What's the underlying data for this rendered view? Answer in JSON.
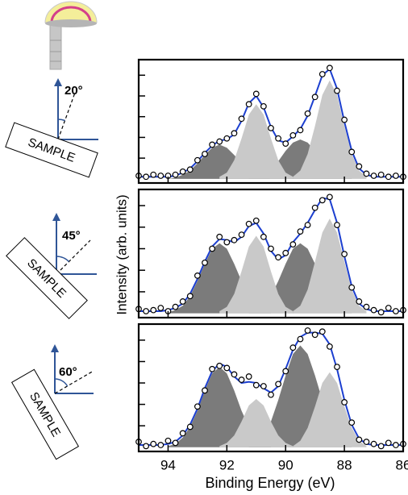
{
  "chart_data": [
    {
      "type": "line",
      "angle": "20°",
      "sample_label": "SAMPLE",
      "xlim": [
        95,
        86
      ],
      "ylim": [
        -0.04,
        1.15
      ],
      "xticks": [
        94,
        92,
        90,
        88,
        86
      ],
      "yticks": [
        0.2,
        0.4,
        0.6,
        0.8,
        1.0
      ],
      "xticklabels": false,
      "x": [
        95,
        94.75,
        94.5,
        94.25,
        94,
        93.75,
        93.5,
        93.25,
        93,
        92.75,
        92.5,
        92.25,
        92,
        91.75,
        91.5,
        91.25,
        91,
        90.75,
        90.5,
        90.25,
        90,
        89.75,
        89.5,
        89.25,
        89,
        88.75,
        88.5,
        88.25,
        88,
        87.75,
        87.5,
        87.25,
        87,
        86.75,
        86.5,
        86.25,
        86
      ],
      "series": [
        {
          "mark": "area",
          "color": "#7b7b7b",
          "values": [
            null,
            null,
            null,
            null,
            0,
            0.01,
            0.04,
            0.08,
            0.15,
            0.23,
            0.3,
            0.33,
            0.3,
            0.23,
            0.15,
            0.08,
            0.04,
            0.01,
            0,
            null,
            null,
            null,
            null,
            null,
            null,
            null,
            null,
            null,
            null,
            null,
            null,
            null,
            null,
            null,
            null,
            null,
            null
          ]
        },
        {
          "mark": "area",
          "color": "#7b7b7b",
          "values": [
            null,
            null,
            null,
            null,
            null,
            null,
            null,
            null,
            null,
            null,
            null,
            null,
            null,
            null,
            null,
            0.01,
            0.02,
            0.04,
            0.09,
            0.17,
            0.27,
            0.35,
            0.38,
            0.35,
            0.27,
            0.17,
            0.09,
            0.04,
            0.02,
            0.01,
            null,
            null,
            null,
            null,
            null,
            null,
            null
          ]
        },
        {
          "mark": "area",
          "color": "#c9c9c9",
          "values": [
            null,
            null,
            null,
            null,
            null,
            null,
            null,
            null,
            null,
            null,
            null,
            0.02,
            0.06,
            0.18,
            0.39,
            0.62,
            0.72,
            0.62,
            0.39,
            0.18,
            0.06,
            0.02,
            null,
            null,
            null,
            null,
            null,
            null,
            null,
            null,
            null,
            null,
            null,
            null,
            null,
            null,
            null
          ]
        },
        {
          "mark": "area",
          "color": "#c9c9c9",
          "values": [
            null,
            null,
            null,
            null,
            null,
            null,
            null,
            null,
            null,
            null,
            null,
            null,
            null,
            null,
            null,
            null,
            null,
            null,
            null,
            null,
            null,
            0.02,
            0.08,
            0.24,
            0.51,
            0.81,
            0.95,
            0.81,
            0.51,
            0.24,
            0.08,
            0.02,
            null,
            null,
            null,
            null,
            null
          ]
        },
        {
          "mark": "line",
          "color": "#1c3fd0",
          "values": [
            0.02,
            0.02,
            0.02,
            0.02,
            0.02,
            0.03,
            0.06,
            0.1,
            0.17,
            0.25,
            0.32,
            0.37,
            0.38,
            0.43,
            0.56,
            0.73,
            0.8,
            0.69,
            0.5,
            0.37,
            0.35,
            0.41,
            0.48,
            0.61,
            0.8,
            1.0,
            1.06,
            0.87,
            0.55,
            0.27,
            0.1,
            0.04,
            0.02,
            0.02,
            0.02,
            0.02,
            0.02
          ]
        },
        {
          "mark": "marker",
          "color": "#000000",
          "values": [
            0.03,
            0.02,
            0.04,
            0.03,
            0.03,
            0.04,
            0.07,
            0.09,
            0.18,
            0.24,
            0.33,
            0.36,
            0.39,
            0.44,
            0.58,
            0.72,
            0.82,
            0.7,
            0.49,
            0.39,
            0.34,
            0.42,
            0.47,
            0.63,
            0.79,
            1.01,
            1.07,
            0.85,
            0.57,
            0.26,
            0.12,
            0.05,
            0.03,
            0.04,
            0.02,
            0.03,
            0.02
          ]
        }
      ]
    },
    {
      "type": "line",
      "angle": "45°",
      "sample_label": "SAMPLE",
      "ylabel": "Intensity (arb. units)",
      "xlim": [
        95,
        86
      ],
      "ylim": [
        -0.04,
        1.15
      ],
      "xticks": [
        94,
        92,
        90,
        88,
        86
      ],
      "yticks": [
        0.2,
        0.4,
        0.6,
        0.8,
        1.0
      ],
      "xticklabels": false,
      "x": [
        95,
        94.75,
        94.5,
        94.25,
        94,
        93.75,
        93.5,
        93.25,
        93,
        92.75,
        92.5,
        92.25,
        92,
        91.75,
        91.5,
        91.25,
        91,
        90.75,
        90.5,
        90.25,
        90,
        89.75,
        89.5,
        89.25,
        89,
        88.75,
        88.5,
        88.25,
        88,
        87.75,
        87.5,
        87.25,
        87,
        86.75,
        86.5,
        86.25,
        86
      ],
      "series": [
        {
          "mark": "area",
          "color": "#7b7b7b",
          "values": [
            null,
            null,
            null,
            null,
            0.01,
            0.03,
            0.07,
            0.16,
            0.3,
            0.46,
            0.6,
            0.65,
            0.6,
            0.46,
            0.3,
            0.16,
            0.07,
            0.03,
            0.01,
            null,
            null,
            null,
            null,
            null,
            null,
            null,
            null,
            null,
            null,
            null,
            null,
            null,
            null,
            null,
            null,
            null,
            null
          ]
        },
        {
          "mark": "area",
          "color": "#7b7b7b",
          "values": [
            null,
            null,
            null,
            null,
            null,
            null,
            null,
            null,
            null,
            null,
            null,
            null,
            null,
            null,
            null,
            0.01,
            0.03,
            0.07,
            0.16,
            0.3,
            0.46,
            0.6,
            0.65,
            0.6,
            0.46,
            0.3,
            0.16,
            0.07,
            0.03,
            0.01,
            null,
            null,
            null,
            null,
            null,
            null,
            null
          ]
        },
        {
          "mark": "area",
          "color": "#c9c9c9",
          "values": [
            null,
            null,
            null,
            null,
            null,
            null,
            null,
            null,
            null,
            null,
            null,
            0.02,
            0.06,
            0.18,
            0.39,
            0.62,
            0.72,
            0.62,
            0.39,
            0.18,
            0.06,
            0.02,
            null,
            null,
            null,
            null,
            null,
            null,
            null,
            null,
            null,
            null,
            null,
            null,
            null,
            null,
            null
          ]
        },
        {
          "mark": "area",
          "color": "#c9c9c9",
          "values": [
            null,
            null,
            null,
            null,
            null,
            null,
            null,
            null,
            null,
            null,
            null,
            null,
            null,
            null,
            null,
            null,
            null,
            null,
            null,
            null,
            null,
            0.02,
            0.07,
            0.22,
            0.48,
            0.75,
            0.88,
            0.75,
            0.48,
            0.22,
            0.07,
            0.02,
            null,
            null,
            null,
            null,
            null
          ]
        },
        {
          "mark": "line",
          "color": "#1c3fd0",
          "values": [
            0.02,
            0.02,
            0.02,
            0.02,
            0.03,
            0.05,
            0.09,
            0.18,
            0.32,
            0.48,
            0.62,
            0.69,
            0.68,
            0.66,
            0.71,
            0.81,
            0.84,
            0.74,
            0.58,
            0.5,
            0.54,
            0.66,
            0.74,
            0.84,
            0.96,
            1.07,
            1.06,
            0.84,
            0.53,
            0.25,
            0.09,
            0.04,
            0.02,
            0.02,
            0.02,
            0.02,
            0.02
          ]
        },
        {
          "mark": "marker",
          "color": "#000000",
          "values": [
            0.04,
            0.02,
            0.03,
            0.05,
            0.02,
            0.06,
            0.11,
            0.16,
            0.35,
            0.47,
            0.6,
            0.71,
            0.66,
            0.68,
            0.73,
            0.83,
            0.86,
            0.71,
            0.6,
            0.52,
            0.56,
            0.64,
            0.76,
            0.82,
            0.98,
            1.05,
            1.08,
            0.82,
            0.55,
            0.24,
            0.11,
            0.06,
            0.03,
            0.01,
            0.05,
            0.02,
            0.03
          ]
        }
      ]
    },
    {
      "type": "line",
      "angle": "60°",
      "sample_label": "SAMPLE",
      "xlabel": "Binding Energy (eV)",
      "xlim": [
        95,
        86
      ],
      "ylim": [
        -0.04,
        1.15
      ],
      "xticks": [
        94,
        92,
        90,
        88,
        86
      ],
      "yticks": [
        0.2,
        0.4,
        0.6,
        0.8,
        1.0
      ],
      "xticklabels": true,
      "x": [
        95,
        94.75,
        94.5,
        94.25,
        94,
        93.75,
        93.5,
        93.25,
        93,
        92.75,
        92.5,
        92.25,
        92,
        91.75,
        91.5,
        91.25,
        91,
        90.75,
        90.5,
        90.25,
        90,
        89.75,
        89.5,
        89.25,
        89,
        88.75,
        88.5,
        88.25,
        88,
        87.75,
        87.5,
        87.25,
        87,
        86.75,
        86.5,
        86.25,
        86
      ],
      "series": [
        {
          "mark": "area",
          "color": "#7b7b7b",
          "values": [
            null,
            null,
            null,
            null,
            0.01,
            0.03,
            0.09,
            0.19,
            0.34,
            0.53,
            0.69,
            0.75,
            0.69,
            0.53,
            0.34,
            0.19,
            0.09,
            0.03,
            0.01,
            null,
            null,
            null,
            null,
            null,
            null,
            null,
            null,
            null,
            null,
            null,
            null,
            null,
            null,
            null,
            null,
            null,
            null
          ]
        },
        {
          "mark": "area",
          "color": "#7b7b7b",
          "values": [
            null,
            null,
            null,
            null,
            null,
            null,
            null,
            null,
            null,
            null,
            null,
            null,
            null,
            null,
            null,
            0.01,
            0.04,
            0.11,
            0.24,
            0.44,
            0.67,
            0.87,
            0.95,
            0.87,
            0.67,
            0.44,
            0.24,
            0.11,
            0.04,
            0.01,
            null,
            null,
            null,
            null,
            null,
            null,
            null
          ]
        },
        {
          "mark": "area",
          "color": "#c9c9c9",
          "values": [
            null,
            null,
            null,
            null,
            null,
            null,
            null,
            null,
            null,
            null,
            null,
            0.01,
            0.04,
            0.11,
            0.24,
            0.39,
            0.45,
            0.39,
            0.24,
            0.11,
            0.04,
            0.01,
            null,
            null,
            null,
            null,
            null,
            null,
            null,
            null,
            null,
            null,
            null,
            null,
            null,
            null,
            null
          ]
        },
        {
          "mark": "area",
          "color": "#c9c9c9",
          "values": [
            null,
            null,
            null,
            null,
            null,
            null,
            null,
            null,
            null,
            null,
            null,
            null,
            null,
            null,
            null,
            null,
            null,
            null,
            null,
            null,
            null,
            0.01,
            0.06,
            0.18,
            0.38,
            0.6,
            0.7,
            0.6,
            0.38,
            0.18,
            0.06,
            0.01,
            null,
            null,
            null,
            null,
            null
          ]
        },
        {
          "mark": "line",
          "color": "#1c3fd0",
          "values": [
            0.02,
            0.02,
            0.02,
            0.02,
            0.03,
            0.05,
            0.11,
            0.21,
            0.36,
            0.55,
            0.71,
            0.78,
            0.75,
            0.66,
            0.6,
            0.61,
            0.6,
            0.55,
            0.51,
            0.57,
            0.73,
            0.91,
            1.03,
            1.07,
            1.07,
            1.06,
            0.96,
            0.73,
            0.44,
            0.21,
            0.08,
            0.03,
            0.02,
            0.02,
            0.02,
            0.02,
            0.02
          ]
        },
        {
          "mark": "marker",
          "color": "#000000",
          "values": [
            0.05,
            0.01,
            0.03,
            0.02,
            0.06,
            0.04,
            0.13,
            0.19,
            0.38,
            0.53,
            0.73,
            0.76,
            0.74,
            0.68,
            0.63,
            0.66,
            0.58,
            0.57,
            0.49,
            0.59,
            0.71,
            0.93,
            1.01,
            1.09,
            1.05,
            1.08,
            0.94,
            0.75,
            0.42,
            0.23,
            0.07,
            0.05,
            0.03,
            0.01,
            0.04,
            0.02,
            0.03
          ]
        }
      ]
    }
  ]
}
